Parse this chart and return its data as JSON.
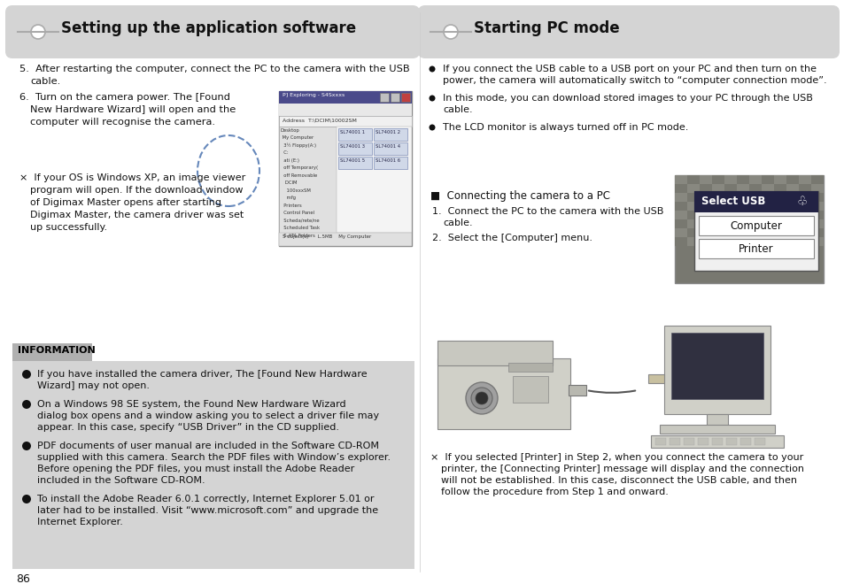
{
  "bg_color": "#ffffff",
  "header_bg": "#d4d4d4",
  "info_bg": "#d4d4d4",
  "info_tab_bg": "#b0b0b0",
  "left_title": "Setting up the application software",
  "right_title": "Starting PC mode",
  "info_title": "INFORMATION",
  "page_number": "86",
  "right_bullets": [
    "If you connect the USB cable to a USB port on your PC and then turn on the power, the camera will automatically switch to “computer connection mode”.",
    "In this mode, you can download stored images to your PC through the USB cable.",
    "The LCD monitor is always turned off in PC mode."
  ],
  "info_bullets": [
    [
      "If you have installed the camera driver, The [Found New Hardware",
      "Wizard] may not open."
    ],
    [
      "On a Windows 98 SE system, the Found New Hardware Wizard",
      "dialog box opens and a window asking you to select a driver file may",
      "appear. In this case, specify “USB Driver” in the CD supplied."
    ],
    [
      "PDF documents of user manual are included in the Software CD-ROM",
      "supplied with this camera. Search the PDF files with Window’s explorer.",
      "Before opening the PDF files, you must install the Adobe Reader",
      "included in the Software CD-ROM."
    ],
    [
      "To install the Adobe Reader 6.0.1 correctly, Internet Explorer 5.01 or",
      "later had to be installed. Visit “www.microsoft.com” and upgrade the",
      "Internet Explorer."
    ]
  ]
}
